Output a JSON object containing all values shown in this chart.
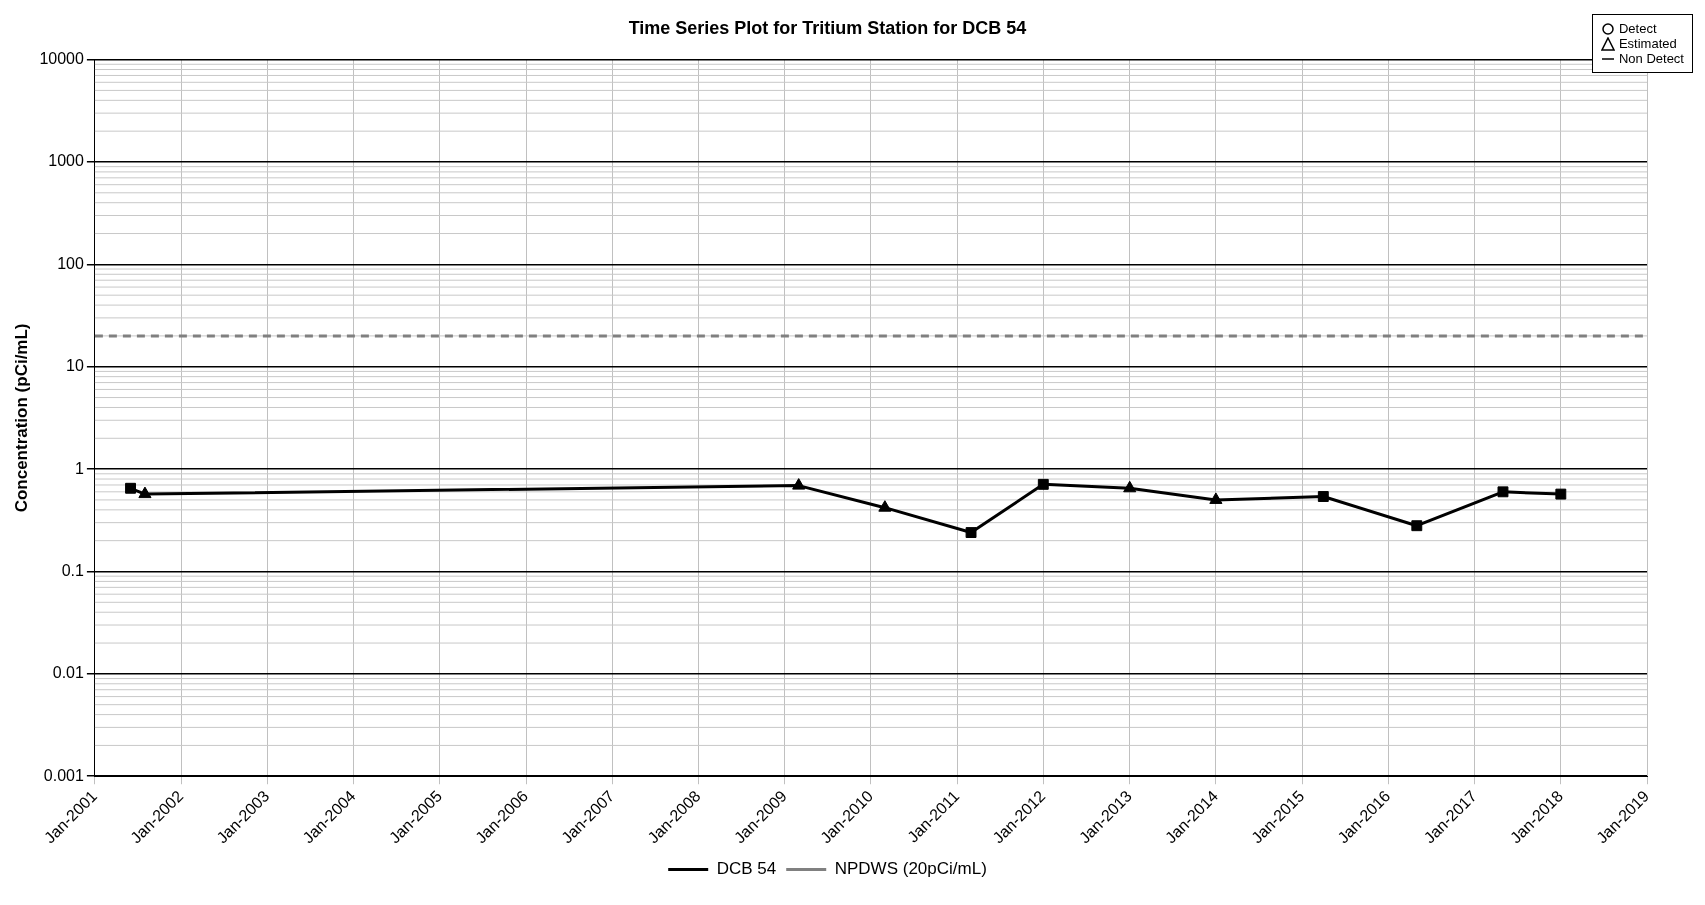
{
  "chart_data": {
    "type": "line",
    "title": "Time Series Plot for Tritium Station for DCB 54",
    "ylabel": "Concentration (pCi/mL)",
    "log": "y",
    "grid": true,
    "legend": "bottom",
    "xlim": [
      "2001-01",
      "2019-01"
    ],
    "xticks": [
      {
        "value": "2001-01",
        "label": "Jan-2001"
      },
      {
        "value": "2002-01",
        "label": "Jan-2002"
      },
      {
        "value": "2003-01",
        "label": "Jan-2003"
      },
      {
        "value": "2004-01",
        "label": "Jan-2004"
      },
      {
        "value": "2005-01",
        "label": "Jan-2005"
      },
      {
        "value": "2006-01",
        "label": "Jan-2006"
      },
      {
        "value": "2007-01",
        "label": "Jan-2007"
      },
      {
        "value": "2008-01",
        "label": "Jan-2008"
      },
      {
        "value": "2009-01",
        "label": "Jan-2009"
      },
      {
        "value": "2010-01",
        "label": "Jan-2010"
      },
      {
        "value": "2011-01",
        "label": "Jan-2011"
      },
      {
        "value": "2012-01",
        "label": "Jan-2012"
      },
      {
        "value": "2013-01",
        "label": "Jan-2013"
      },
      {
        "value": "2014-01",
        "label": "Jan-2014"
      },
      {
        "value": "2015-01",
        "label": "Jan-2015"
      },
      {
        "value": "2016-01",
        "label": "Jan-2016"
      },
      {
        "value": "2017-01",
        "label": "Jan-2017"
      },
      {
        "value": "2018-01",
        "label": "Jan-2018"
      },
      {
        "value": "2019-01",
        "label": "Jan-2019"
      }
    ],
    "ylim": [
      0.001,
      10000
    ],
    "yticks": [
      0.001,
      0.01,
      0.1,
      1,
      10,
      100,
      1000,
      10000
    ],
    "series": [
      {
        "type": "line",
        "marker": "none",
        "color": "#000000",
        "x": [
          "2001-06",
          "2001-08",
          "2009-03",
          "2010-03",
          "2011-03",
          "2012-01",
          "2013-01",
          "2014-01",
          "2015-04",
          "2016-05",
          "2017-05",
          "2018-01"
        ],
        "values": [
          0.65,
          0.57,
          0.69,
          0.42,
          0.24,
          0.71,
          0.65,
          0.5,
          0.54,
          0.28,
          0.6,
          0.57
        ]
      },
      {
        "name": "DCB 54",
        "type": "scatter",
        "marker": "square",
        "color": "#000000",
        "x": [
          "2001-06",
          "2011-03",
          "2012-01",
          "2015-04",
          "2016-05",
          "2017-05",
          "2018-01"
        ],
        "values": [
          0.65,
          0.24,
          0.71,
          0.54,
          0.28,
          0.6,
          0.57
        ]
      },
      {
        "type": "scatter",
        "marker": "triangle",
        "color": "#000000",
        "x": [
          "2001-08",
          "2009-03",
          "2010-03",
          "2013-01",
          "2014-01"
        ],
        "values": [
          0.57,
          0.69,
          0.42,
          0.65,
          0.5
        ]
      }
    ],
    "ref_lines": [
      {
        "axis": "y",
        "value": 20,
        "label": "NPDWS (20pCi/mL)",
        "color": "#808080",
        "line_style": "dashed"
      }
    ],
    "annotations": [
      "Detect",
      "Estimated",
      "Non Detect"
    ]
  }
}
